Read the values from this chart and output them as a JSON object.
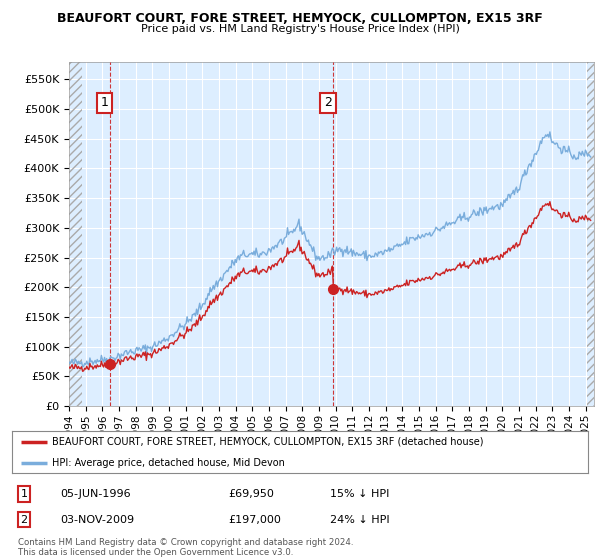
{
  "title": "BEAUFORT COURT, FORE STREET, HEMYOCK, CULLOMPTON, EX15 3RF",
  "subtitle": "Price paid vs. HM Land Registry's House Price Index (HPI)",
  "ylim": [
    0,
    580000
  ],
  "yticks": [
    0,
    50000,
    100000,
    150000,
    200000,
    250000,
    300000,
    350000,
    400000,
    450000,
    500000,
    550000
  ],
  "xlim_start": 1994.0,
  "xlim_end": 2025.5,
  "hpi_color": "#7aaddc",
  "price_color": "#cc2222",
  "sale1_x": 1996.43,
  "sale1_y": 69950,
  "sale1_label": "1",
  "sale2_x": 2009.84,
  "sale2_y": 197000,
  "sale2_label": "2",
  "legend_line1": "BEAUFORT COURT, FORE STREET, HEMYOCK, CULLOMPTON, EX15 3RF (detached house)",
  "legend_line2": "HPI: Average price, detached house, Mid Devon",
  "table_row1": [
    "1",
    "05-JUN-1996",
    "£69,950",
    "15% ↓ HPI"
  ],
  "table_row2": [
    "2",
    "03-NOV-2009",
    "£197,000",
    "24% ↓ HPI"
  ],
  "footnote": "Contains HM Land Registry data © Crown copyright and database right 2024.\nThis data is licensed under the Open Government Licence v3.0.",
  "bg_color": "#ffffff",
  "chart_bg_color": "#ddeeff",
  "grid_color": "#ffffff",
  "vline_color": "#cc2222"
}
